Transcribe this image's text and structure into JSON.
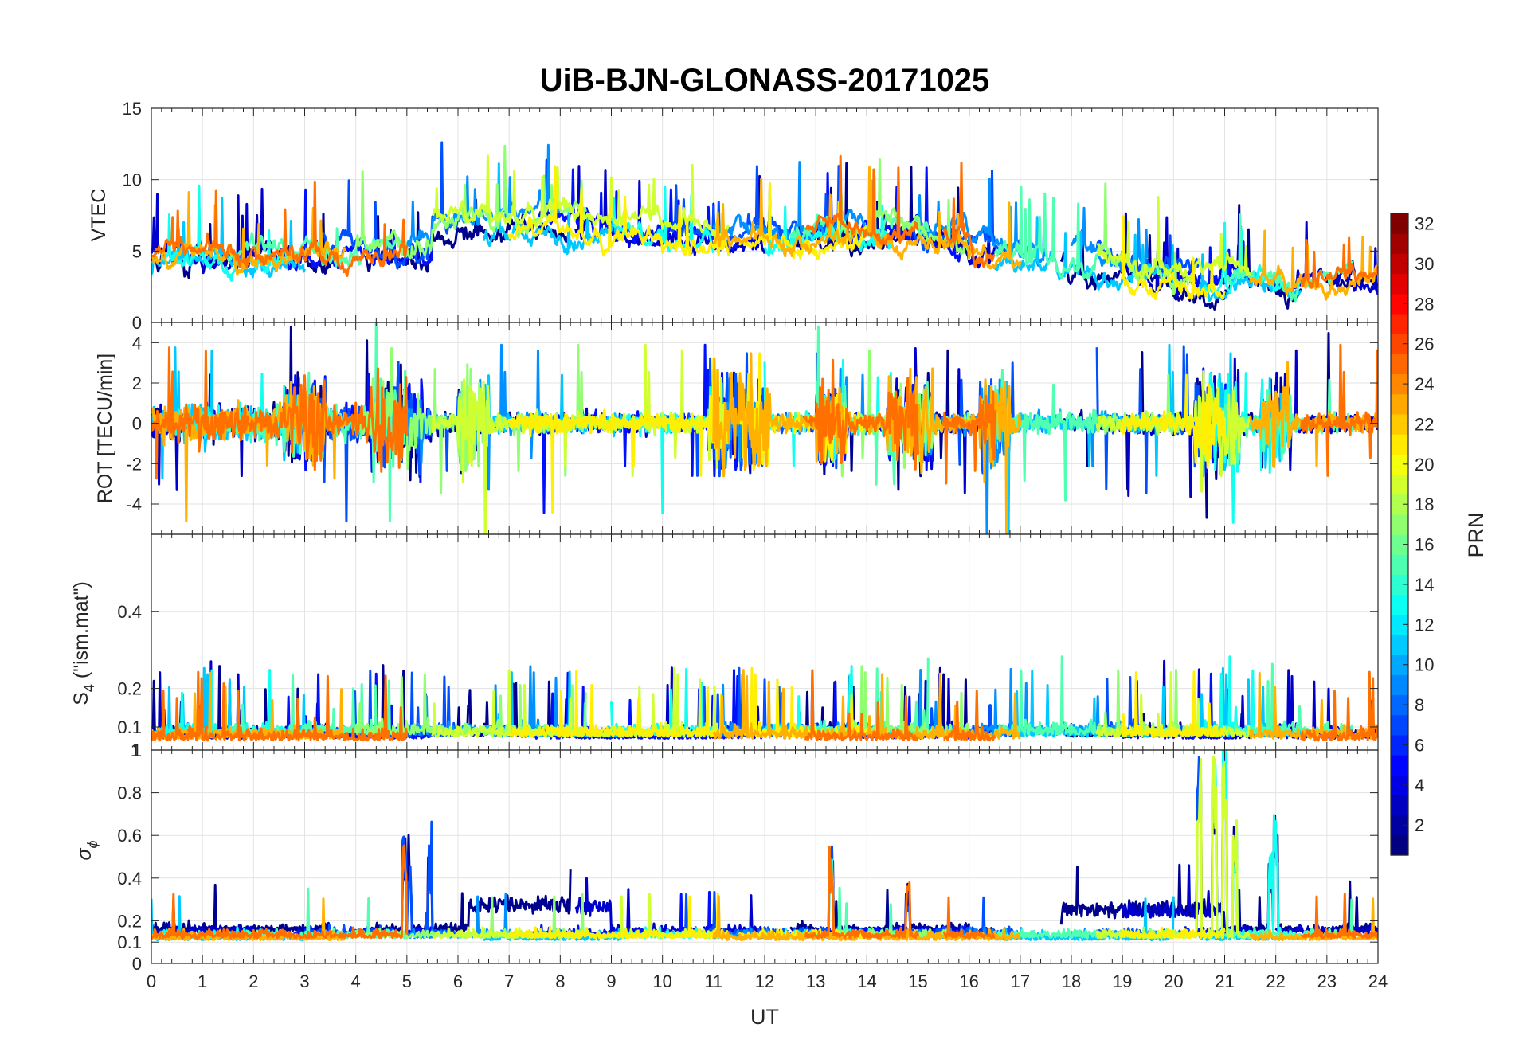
{
  "chart_data": {
    "type": "line",
    "title": "UiB-BJN-GLONASS-20171025",
    "xlabel": "UT",
    "xlim": [
      0,
      24
    ],
    "x_ticks": [
      "0",
      "1",
      "2",
      "3",
      "4",
      "5",
      "6",
      "7",
      "8",
      "9",
      "10",
      "11",
      "12",
      "13",
      "14",
      "15",
      "16",
      "17",
      "18",
      "19",
      "20",
      "21",
      "22",
      "23",
      "24"
    ],
    "panels": [
      {
        "name": "vtec",
        "ylabel": "VTEC",
        "ylim": [
          0,
          15
        ],
        "y_ticks": [
          {
            "value": 0,
            "label": "0"
          },
          {
            "value": 5,
            "label": "5"
          },
          {
            "value": 10,
            "label": "10"
          },
          {
            "value": 15,
            "label": "15"
          }
        ],
        "grid": true
      },
      {
        "name": "rot",
        "ylabel": "ROT [TECU/min]",
        "ylim": [
          -5.5,
          5
        ],
        "y_ticks": [
          {
            "value": -4,
            "label": "-4"
          },
          {
            "value": -2,
            "label": "-2"
          },
          {
            "value": 0,
            "label": "0"
          },
          {
            "value": 2,
            "label": "2"
          },
          {
            "value": 4,
            "label": "4"
          }
        ],
        "grid": true
      },
      {
        "name": "s4",
        "ylabel_main": "S",
        "ylabel_sub": "4",
        "ylabel_rest": " (\"ism.mat\")",
        "ylim": [
          0.04,
          0.6
        ],
        "y_ticks": [
          {
            "value": 0.1,
            "label": "0.1"
          },
          {
            "value": 0.2,
            "label": "0.2"
          },
          {
            "value": 0.4,
            "label": "0.4"
          }
        ],
        "top_tick_label": "1",
        "grid": true
      },
      {
        "name": "sigma_phi",
        "ylabel_main": "σ",
        "ylabel_sub": "ϕ",
        "ylim": [
          0,
          1
        ],
        "y_ticks": [
          {
            "value": 0,
            "label": "0"
          },
          {
            "value": 0.1,
            "label": "0.1"
          },
          {
            "value": 0.2,
            "label": "0.2"
          },
          {
            "value": 0.4,
            "label": "0.4"
          },
          {
            "value": 0.6,
            "label": "0.6"
          },
          {
            "value": 0.8,
            "label": "0.8"
          },
          {
            "value": 1,
            "label": "1"
          }
        ],
        "grid": true
      }
    ],
    "colorbar": {
      "label": "PRN",
      "colormap": "jet",
      "range": [
        1,
        32
      ],
      "ticks": [
        "2",
        "4",
        "6",
        "8",
        "10",
        "12",
        "14",
        "16",
        "18",
        "20",
        "22",
        "24",
        "26",
        "28",
        "30",
        "32"
      ]
    },
    "series": [
      {
        "prn": 1,
        "color": "#00008f",
        "segments": [
          [
            0,
            3.5
          ],
          [
            4.2,
            8.2
          ],
          [
            12.5,
            16
          ],
          [
            17.8,
            22.5
          ],
          [
            23,
            24
          ]
        ],
        "vtec": 5.8,
        "s4": 0.075,
        "sig": 0.15
      },
      {
        "prn": 3,
        "color": "#0000cc",
        "segments": [
          [
            0,
            2.2
          ],
          [
            8.3,
            12
          ],
          [
            14.5,
            16.5
          ],
          [
            19,
            21.5
          ],
          [
            22,
            24
          ]
        ],
        "vtec": 6.2,
        "s4": 0.07,
        "sig": 0.14
      },
      {
        "prn": 5,
        "color": "#0010ff",
        "segments": [
          [
            2.5,
            5.5
          ],
          [
            7.5,
            11.5
          ],
          [
            13,
            16
          ],
          [
            20.2,
            21.2
          ]
        ],
        "vtec": 5.5,
        "s4": 0.07,
        "sig": 0.13
      },
      {
        "prn": 7,
        "color": "#0050ff",
        "segments": [
          [
            3,
            6
          ],
          [
            10,
            13.5
          ],
          [
            14.8,
            17
          ],
          [
            18.5,
            20.5
          ]
        ],
        "vtec": 5.9,
        "s4": 0.075,
        "sig": 0.13
      },
      {
        "prn": 9,
        "color": "#0090ff",
        "segments": [
          [
            5,
            8
          ],
          [
            11,
            14
          ],
          [
            15,
            17.5
          ],
          [
            18,
            19.5
          ]
        ],
        "vtec": 6.0,
        "s4": 0.08,
        "sig": 0.12
      },
      {
        "prn": 11,
        "color": "#00c8ff",
        "segments": [
          [
            0,
            3
          ],
          [
            6.5,
            9.2
          ],
          [
            16.5,
            20
          ],
          [
            20.5,
            22.5
          ]
        ],
        "vtec": 5.4,
        "s4": 0.075,
        "sig": 0.11
      },
      {
        "prn": 13,
        "color": "#10ffef",
        "segments": [
          [
            0.2,
            2.6
          ],
          [
            9,
            11
          ],
          [
            12,
            14.5
          ],
          [
            20.6,
            22.2
          ]
        ],
        "vtec": 5.6,
        "s4": 0.08,
        "sig": 0.12
      },
      {
        "prn": 15,
        "color": "#50ffaf",
        "segments": [
          [
            1.5,
            5
          ],
          [
            12.5,
            15.2
          ],
          [
            16.5,
            18.5
          ],
          [
            21,
            23.5
          ]
        ],
        "vtec": 5.2,
        "s4": 0.08,
        "sig": 0.12
      },
      {
        "prn": 17,
        "color": "#90ff6f",
        "segments": [
          [
            4,
            6.2
          ],
          [
            6,
            8.5
          ],
          [
            13.5,
            16
          ],
          [
            18.5,
            20.3
          ]
        ],
        "vtec": 5.0,
        "s4": 0.08,
        "sig": 0.12
      },
      {
        "prn": 19,
        "color": "#cfff30",
        "segments": [
          [
            5.5,
            8
          ],
          [
            8,
            11.3
          ],
          [
            18.5,
            21.5
          ]
        ],
        "vtec": 6.5,
        "s4": 0.075,
        "sig": 0.12
      },
      {
        "prn": 20,
        "color": "#ffef00",
        "segments": [
          [
            7,
            11.3
          ],
          [
            11.5,
            14
          ],
          [
            19,
            21
          ]
        ],
        "vtec": 7.2,
        "s4": 0.075,
        "sig": 0.12
      },
      {
        "prn": 22,
        "color": "#ffb000",
        "segments": [
          [
            0,
            3.8
          ],
          [
            11,
            13.8
          ],
          [
            14,
            17
          ],
          [
            21.5,
            24
          ]
        ],
        "vtec": 5.3,
        "s4": 0.07,
        "sig": 0.11
      },
      {
        "prn": 24,
        "color": "#ff7000",
        "segments": [
          [
            0,
            5
          ],
          [
            12.8,
            15
          ],
          [
            15.5,
            16.5
          ],
          [
            22.5,
            24
          ]
        ],
        "vtec": 4.6,
        "s4": 0.065,
        "sig": 0.12
      }
    ]
  }
}
